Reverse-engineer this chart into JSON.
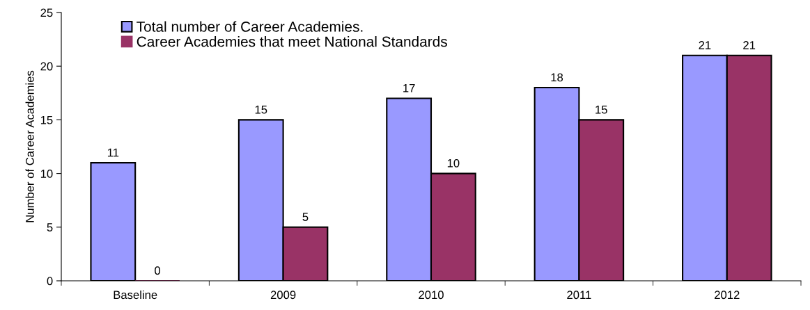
{
  "chart_data": {
    "type": "bar",
    "ylabel": "Number of Career Academies",
    "categories": [
      "Baseline",
      "2009",
      "2010",
      "2011",
      "2012"
    ],
    "series": [
      {
        "name": "Total number of Career Academies.",
        "color": "#9999ff",
        "values": [
          11,
          15,
          17,
          18,
          21
        ]
      },
      {
        "name": "Career Academies that meet National Standards",
        "color": "#993366",
        "values": [
          0,
          5,
          10,
          15,
          21
        ]
      }
    ],
    "ylim": [
      0,
      25
    ],
    "yticks": [
      0,
      5,
      10,
      15,
      20,
      25
    ],
    "grid": false,
    "legend": "top left",
    "data_labels": true
  }
}
